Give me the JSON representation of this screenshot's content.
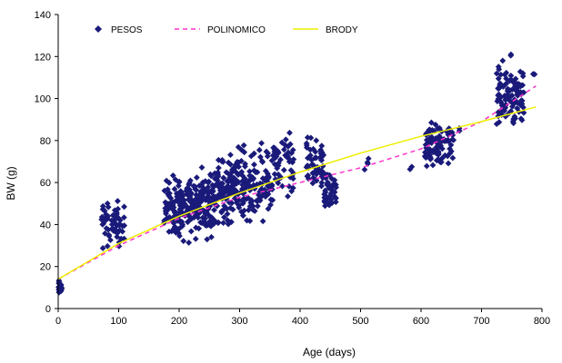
{
  "chart_data": {
    "type": "scatter",
    "xlabel": "Age (days)",
    "ylabel": "BW (g)",
    "xlim": [
      0,
      800
    ],
    "ylim": [
      0,
      140
    ],
    "x_ticks": [
      0,
      100,
      200,
      300,
      400,
      500,
      600,
      700,
      800
    ],
    "y_ticks": [
      0,
      20,
      40,
      60,
      80,
      100,
      120,
      140
    ],
    "grid": false,
    "legend_position": "top",
    "series": [
      {
        "name": "PESOS",
        "kind": "scatter",
        "color": "#1a1a7a",
        "marker": "diamond",
        "clusters": [
          {
            "x": [
              0,
              6
            ],
            "y": [
              5,
              15
            ],
            "n": 25
          },
          {
            "x": [
              70,
              110
            ],
            "y": [
              25,
              55
            ],
            "n": 60
          },
          {
            "x": [
              175,
              205
            ],
            "y": [
              30,
              67
            ],
            "n": 75
          },
          {
            "x": [
              200,
              230
            ],
            "y": [
              28,
              70
            ],
            "n": 90
          },
          {
            "x": [
              230,
              260
            ],
            "y": [
              30,
              72
            ],
            "n": 90
          },
          {
            "x": [
              260,
              290
            ],
            "y": [
              35,
              78
            ],
            "n": 90
          },
          {
            "x": [
              290,
              320
            ],
            "y": [
              35,
              83
            ],
            "n": 75
          },
          {
            "x": [
              320,
              355
            ],
            "y": [
              35,
              82
            ],
            "n": 65
          },
          {
            "x": [
              355,
              390
            ],
            "y": [
              45,
              89
            ],
            "n": 50
          },
          {
            "x": [
              410,
              440
            ],
            "y": [
              50,
              86
            ],
            "n": 60
          },
          {
            "x": [
              440,
              460
            ],
            "y": [
              42,
              68
            ],
            "n": 40
          },
          {
            "x": [
              505,
              515
            ],
            "y": [
              62,
              76
            ],
            "n": 4
          },
          {
            "x": [
              580,
              585
            ],
            "y": [
              65,
              68
            ],
            "n": 2
          },
          {
            "x": [
              605,
              655
            ],
            "y": [
              62,
              93
            ],
            "n": 90
          },
          {
            "x": [
              660,
              665
            ],
            "y": [
              84,
              88
            ],
            "n": 2
          },
          {
            "x": [
              725,
              770
            ],
            "y": [
              78,
              124
            ],
            "n": 110
          },
          {
            "x": [
              785,
              790
            ],
            "y": [
              110,
              113
            ],
            "n": 2
          }
        ]
      },
      {
        "name": "POLINOMICO",
        "kind": "line",
        "style": "dashed",
        "color": "#ff33cc",
        "x": [
          0,
          100,
          200,
          300,
          400,
          500,
          600,
          700,
          790
        ],
        "y": [
          14,
          30,
          43,
          53,
          60,
          67,
          76,
          89,
          106
        ]
      },
      {
        "name": "BRODY",
        "kind": "line",
        "style": "solid",
        "color": "#eeee00",
        "x": [
          0,
          100,
          200,
          300,
          400,
          500,
          600,
          700,
          790
        ],
        "y": [
          14,
          31,
          44,
          55,
          65,
          74,
          82,
          89,
          96
        ]
      }
    ]
  }
}
